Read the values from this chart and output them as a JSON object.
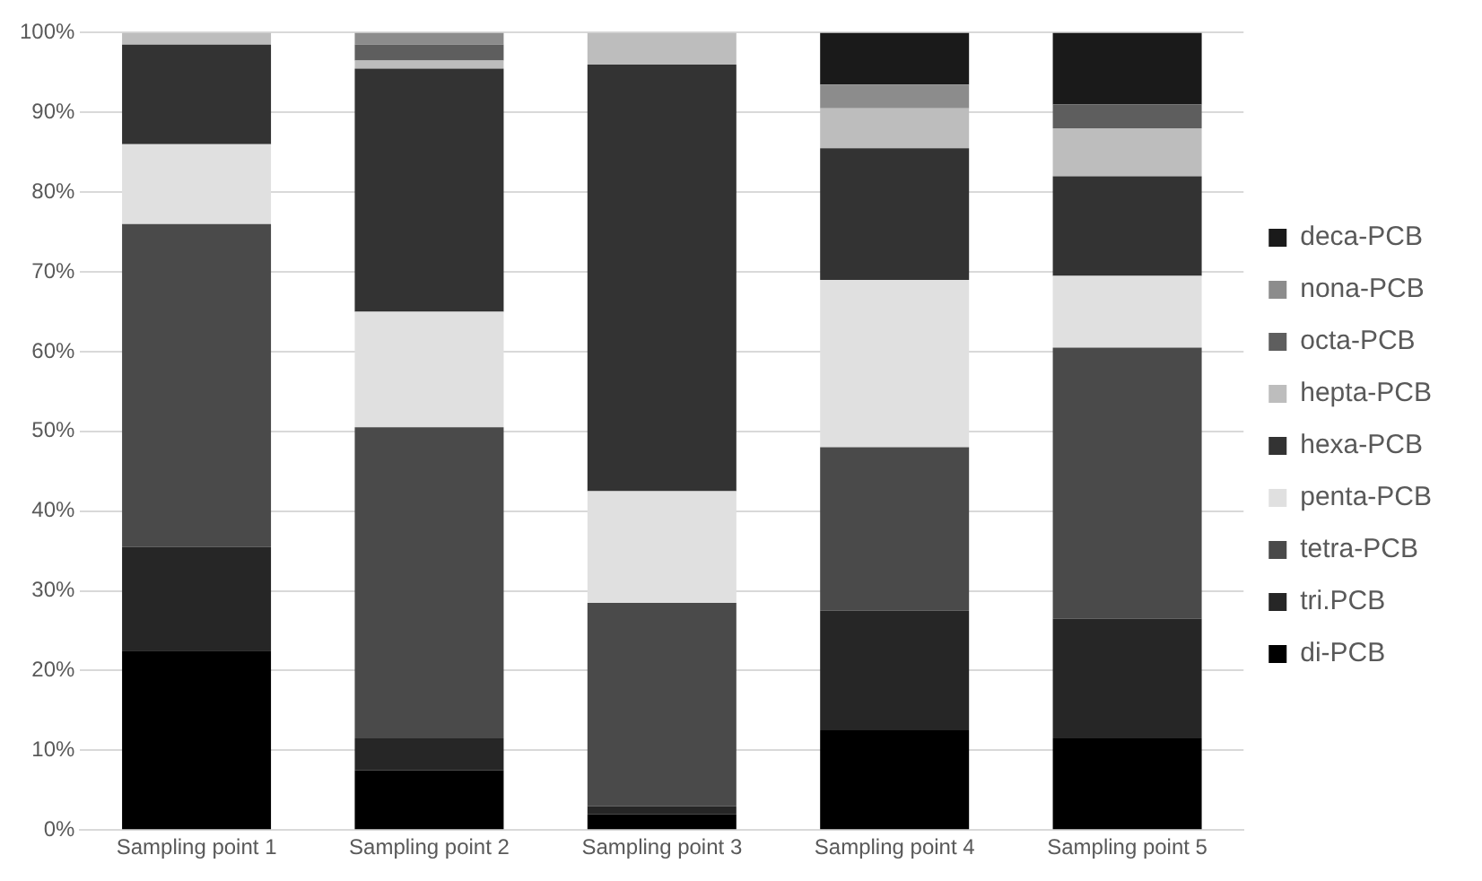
{
  "chart_data": {
    "type": "bar",
    "stacked": true,
    "categories": [
      "Sampling point 1",
      "Sampling point 2",
      "Sampling point 3",
      "Sampling point 4",
      "Sampling point 5"
    ],
    "series": [
      {
        "name": "di-PCB",
        "color": "#000000",
        "values": [
          22.5,
          7.5,
          2,
          12.5,
          11.5
        ]
      },
      {
        "name": "tri.PCB",
        "color": "#262626",
        "values": [
          13,
          4,
          1,
          15,
          15
        ]
      },
      {
        "name": "tetra-PCB",
        "color": "#4a4a4a",
        "values": [
          40.5,
          39,
          25.5,
          20.5,
          34
        ]
      },
      {
        "name": "penta-PCB",
        "color": "#e0e0e0",
        "values": [
          10,
          14.5,
          14,
          21,
          9
        ]
      },
      {
        "name": "hexa-PCB",
        "color": "#333333",
        "values": [
          12.5,
          30.5,
          53.5,
          16.5,
          12.5
        ]
      },
      {
        "name": "hepta-PCB",
        "color": "#bdbdbd",
        "values": [
          1.5,
          1,
          4,
          5,
          6
        ]
      },
      {
        "name": "octa-PCB",
        "color": "#5e5e5e",
        "values": [
          0,
          2,
          0,
          0,
          3
        ]
      },
      {
        "name": "nona-PCB",
        "color": "#8c8c8c",
        "values": [
          0,
          1.5,
          0,
          3,
          0
        ]
      },
      {
        "name": "deca-PCB",
        "color": "#1a1a1a",
        "values": [
          0,
          0,
          0,
          6.5,
          9
        ]
      }
    ],
    "ylim": [
      0,
      100
    ],
    "yticks": [
      {
        "value": 0,
        "label": "0%"
      },
      {
        "value": 10,
        "label": "10%"
      },
      {
        "value": 20,
        "label": "20%"
      },
      {
        "value": 30,
        "label": "30%"
      },
      {
        "value": 40,
        "label": "40%"
      },
      {
        "value": 50,
        "label": "50%"
      },
      {
        "value": 60,
        "label": "60%"
      },
      {
        "value": 70,
        "label": "70%"
      },
      {
        "value": 80,
        "label": "80%"
      },
      {
        "value": 90,
        "label": "90%"
      },
      {
        "value": 100,
        "label": "100%"
      }
    ],
    "grid": "y",
    "legend": "right"
  }
}
